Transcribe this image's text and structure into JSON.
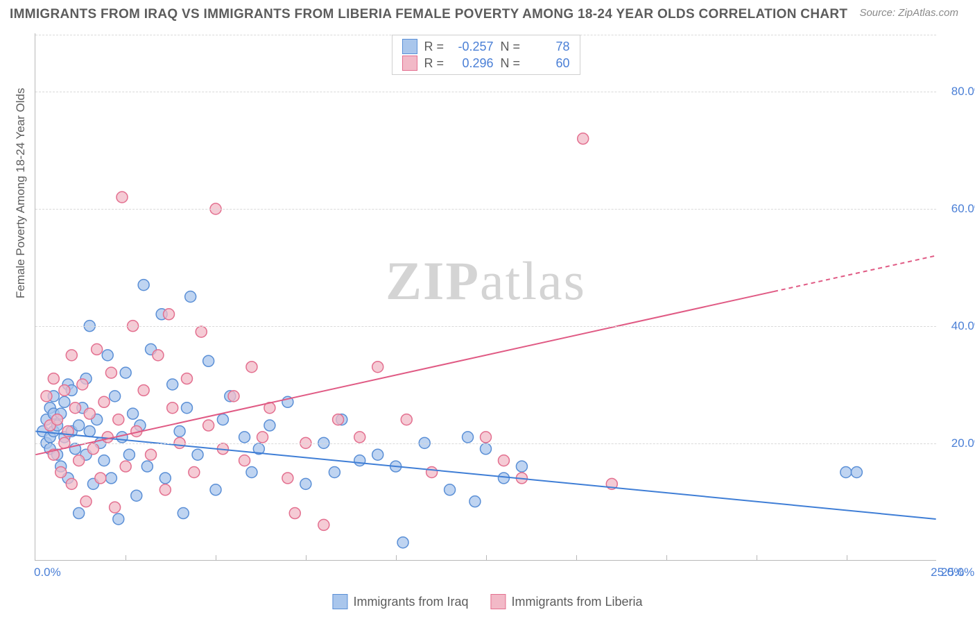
{
  "title": "IMMIGRANTS FROM IRAQ VS IMMIGRANTS FROM LIBERIA FEMALE POVERTY AMONG 18-24 YEAR OLDS CORRELATION CHART",
  "source": "Source: ZipAtlas.com",
  "watermark_zip": "ZIP",
  "watermark_atlas": "atlas",
  "chart": {
    "type": "scatter",
    "background_color": "#ffffff",
    "grid_color": "#d9d9d9",
    "axis_color": "#b8b8b8",
    "tick_color": "#4a7fd6",
    "ylabel": "Female Poverty Among 18-24 Year Olds",
    "ylabel_fontsize": 17,
    "xlim": [
      0,
      25
    ],
    "ylim": [
      0,
      90
    ],
    "xticks": [
      0,
      25
    ],
    "xtick_labels": [
      "0.0%",
      "25.0%"
    ],
    "yticks": [
      20,
      40,
      60,
      80
    ],
    "ytick_labels": [
      "20.0%",
      "40.0%",
      "60.0%",
      "80.0%"
    ],
    "x_minor_step": 2.5,
    "marker_radius": 8,
    "marker_opacity": 0.75,
    "line_width": 2,
    "series": [
      {
        "name": "Immigrants from Iraq",
        "fill": "#a9c6ec",
        "stroke": "#5a8fd6",
        "line_color": "#3f7ed6",
        "r": -0.257,
        "n": 78,
        "trend": {
          "x1": 0,
          "y1": 22.0,
          "x2": 25,
          "y2": 7.0,
          "dash_from_x": null
        },
        "points": [
          [
            0.2,
            22
          ],
          [
            0.3,
            24
          ],
          [
            0.3,
            20
          ],
          [
            0.4,
            21
          ],
          [
            0.4,
            26
          ],
          [
            0.4,
            19
          ],
          [
            0.5,
            25
          ],
          [
            0.5,
            22
          ],
          [
            0.5,
            28
          ],
          [
            0.6,
            23
          ],
          [
            0.6,
            18
          ],
          [
            0.7,
            25
          ],
          [
            0.7,
            16
          ],
          [
            0.8,
            27
          ],
          [
            0.8,
            21
          ],
          [
            0.9,
            30
          ],
          [
            0.9,
            14
          ],
          [
            1.0,
            22
          ],
          [
            1.0,
            29
          ],
          [
            1.1,
            19
          ],
          [
            1.2,
            23
          ],
          [
            1.2,
            8
          ],
          [
            1.3,
            26
          ],
          [
            1.4,
            18
          ],
          [
            1.4,
            31
          ],
          [
            1.5,
            22
          ],
          [
            1.5,
            40
          ],
          [
            1.6,
            13
          ],
          [
            1.7,
            24
          ],
          [
            1.8,
            20
          ],
          [
            1.9,
            17
          ],
          [
            2.0,
            35
          ],
          [
            2.1,
            14
          ],
          [
            2.2,
            28
          ],
          [
            2.3,
            7
          ],
          [
            2.4,
            21
          ],
          [
            2.5,
            32
          ],
          [
            2.6,
            18
          ],
          [
            2.7,
            25
          ],
          [
            2.8,
            11
          ],
          [
            2.9,
            23
          ],
          [
            3.0,
            47
          ],
          [
            3.1,
            16
          ],
          [
            3.2,
            36
          ],
          [
            3.5,
            42
          ],
          [
            3.6,
            14
          ],
          [
            3.8,
            30
          ],
          [
            4.0,
            22
          ],
          [
            4.1,
            8
          ],
          [
            4.2,
            26
          ],
          [
            4.3,
            45
          ],
          [
            4.5,
            18
          ],
          [
            4.8,
            34
          ],
          [
            5.0,
            12
          ],
          [
            5.2,
            24
          ],
          [
            5.4,
            28
          ],
          [
            5.8,
            21
          ],
          [
            6.0,
            15
          ],
          [
            6.2,
            19
          ],
          [
            6.5,
            23
          ],
          [
            7.0,
            27
          ],
          [
            7.5,
            13
          ],
          [
            8.0,
            20
          ],
          [
            8.3,
            15
          ],
          [
            8.5,
            24
          ],
          [
            9.0,
            17
          ],
          [
            9.5,
            18
          ],
          [
            10.0,
            16
          ],
          [
            10.2,
            3
          ],
          [
            10.8,
            20
          ],
          [
            11.5,
            12
          ],
          [
            12.0,
            21
          ],
          [
            12.2,
            10
          ],
          [
            12.5,
            19
          ],
          [
            13.0,
            14
          ],
          [
            13.5,
            16
          ],
          [
            22.5,
            15
          ],
          [
            22.8,
            15
          ]
        ]
      },
      {
        "name": "Immigrants from Liberia",
        "fill": "#f2b9c7",
        "stroke": "#e36f8f",
        "line_color": "#e05a84",
        "r": 0.296,
        "n": 60,
        "trend": {
          "x1": 0,
          "y1": 18.0,
          "x2": 25,
          "y2": 52.0,
          "dash_from_x": 20.5
        },
        "points": [
          [
            0.3,
            28
          ],
          [
            0.4,
            23
          ],
          [
            0.5,
            31
          ],
          [
            0.5,
            18
          ],
          [
            0.6,
            24
          ],
          [
            0.7,
            15
          ],
          [
            0.8,
            29
          ],
          [
            0.8,
            20
          ],
          [
            0.9,
            22
          ],
          [
            1.0,
            35
          ],
          [
            1.0,
            13
          ],
          [
            1.1,
            26
          ],
          [
            1.2,
            17
          ],
          [
            1.3,
            30
          ],
          [
            1.4,
            10
          ],
          [
            1.5,
            25
          ],
          [
            1.6,
            19
          ],
          [
            1.7,
            36
          ],
          [
            1.8,
            14
          ],
          [
            1.9,
            27
          ],
          [
            2.0,
            21
          ],
          [
            2.1,
            32
          ],
          [
            2.2,
            9
          ],
          [
            2.3,
            24
          ],
          [
            2.4,
            62
          ],
          [
            2.5,
            16
          ],
          [
            2.7,
            40
          ],
          [
            2.8,
            22
          ],
          [
            3.0,
            29
          ],
          [
            3.2,
            18
          ],
          [
            3.4,
            35
          ],
          [
            3.6,
            12
          ],
          [
            3.7,
            42
          ],
          [
            3.8,
            26
          ],
          [
            4.0,
            20
          ],
          [
            4.2,
            31
          ],
          [
            4.4,
            15
          ],
          [
            4.6,
            39
          ],
          [
            4.8,
            23
          ],
          [
            5.0,
            60
          ],
          [
            5.2,
            19
          ],
          [
            5.5,
            28
          ],
          [
            5.8,
            17
          ],
          [
            6.0,
            33
          ],
          [
            6.3,
            21
          ],
          [
            6.5,
            26
          ],
          [
            7.0,
            14
          ],
          [
            7.2,
            8
          ],
          [
            7.5,
            20
          ],
          [
            8.0,
            6
          ],
          [
            8.4,
            24
          ],
          [
            9.0,
            21
          ],
          [
            9.5,
            33
          ],
          [
            10.3,
            24
          ],
          [
            11.0,
            15
          ],
          [
            12.5,
            21
          ],
          [
            13.0,
            17
          ],
          [
            13.5,
            14
          ],
          [
            15.2,
            72
          ],
          [
            16.0,
            13
          ]
        ]
      }
    ]
  },
  "top_legend": {
    "r_label": "R =",
    "n_label": "N ="
  }
}
